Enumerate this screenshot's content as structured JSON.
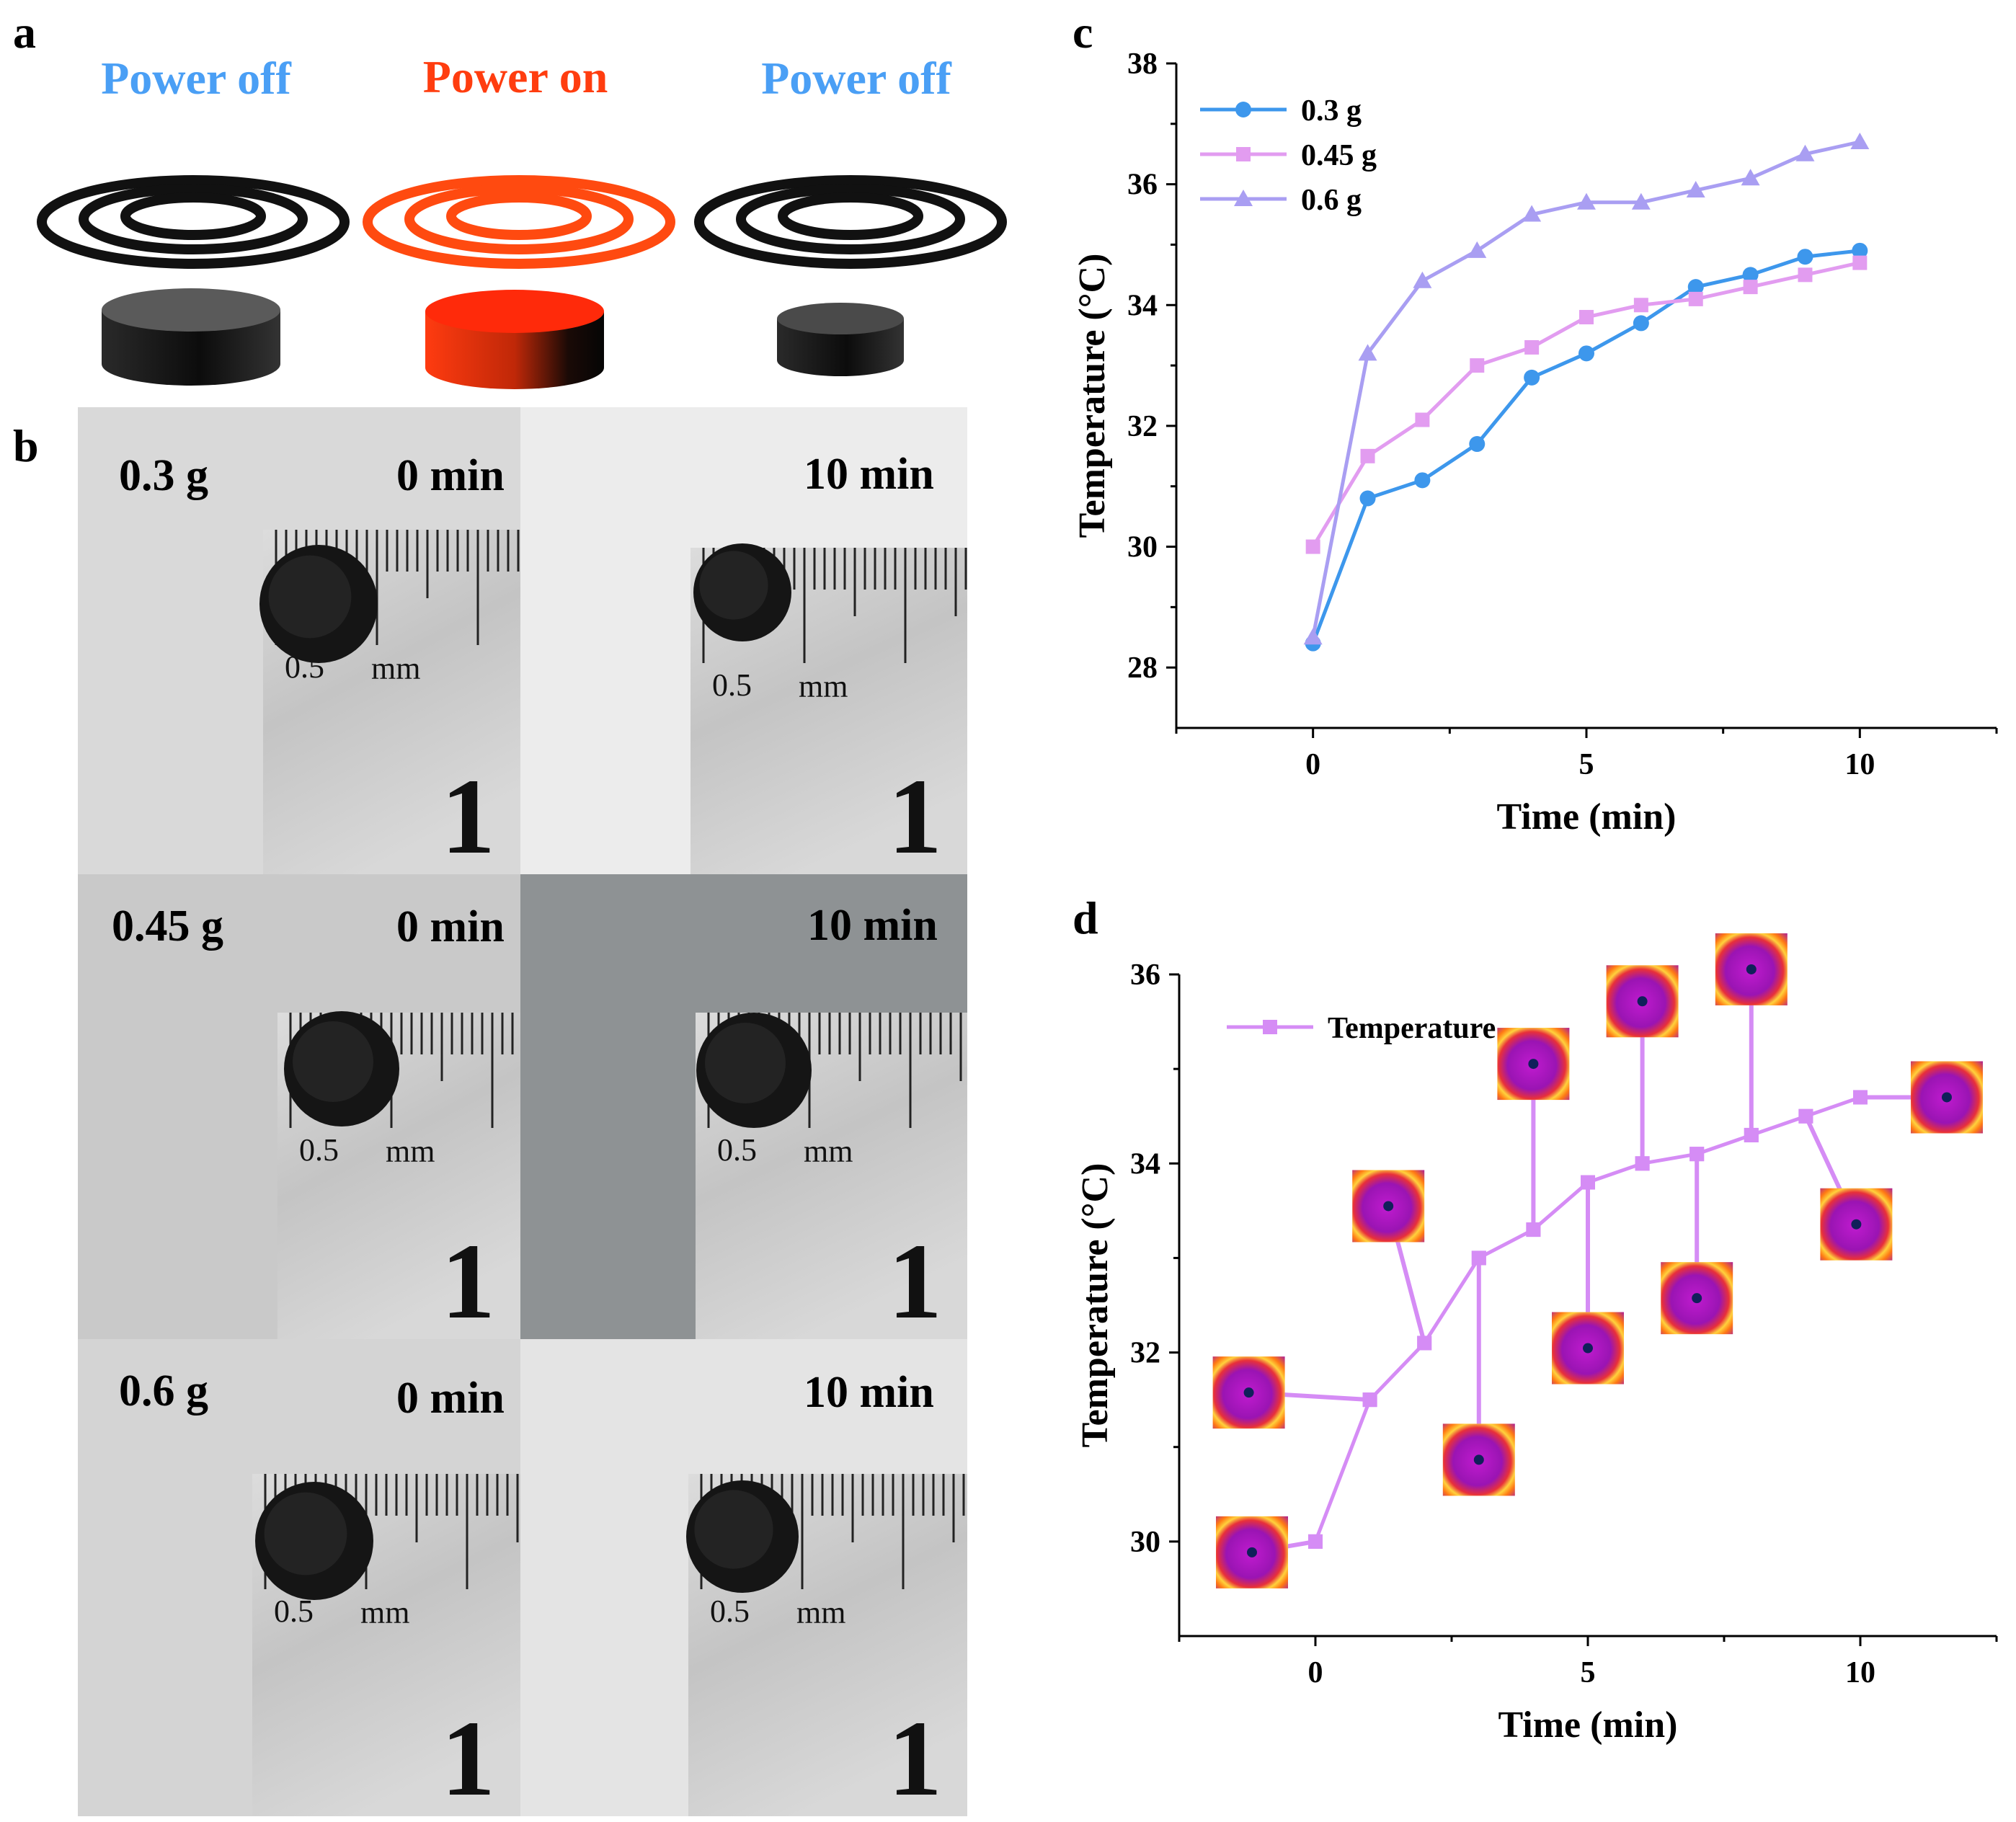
{
  "panels": {
    "a": "a",
    "b": "b",
    "c": "c",
    "d": "d"
  },
  "panel_a": {
    "states": [
      {
        "label": "Power off",
        "color": "#4a9ff5"
      },
      {
        "label": "Power on",
        "color": "#ff3d0f"
      },
      {
        "label": "Power off",
        "color": "#4a9ff5"
      }
    ]
  },
  "panel_b": {
    "rows": [
      {
        "mass": "0.3 g",
        "t0": "0 min",
        "t10": "10 min"
      },
      {
        "mass": "0.45 g",
        "t0": "0 min",
        "t10": "10 min"
      },
      {
        "mass": "0.6 g",
        "t0": "0 min",
        "t10": "10 min"
      }
    ],
    "ruler": {
      "small": "0.5",
      "unit": "mm",
      "big": "1"
    }
  },
  "chart_data": [
    {
      "panel": "c",
      "type": "line",
      "title": "",
      "xlabel": "Time (min)",
      "ylabel": "Temperature (°C)",
      "xlim": [
        -2.5,
        12.5
      ],
      "ylim": [
        27,
        38
      ],
      "xticks": [
        0,
        5,
        10
      ],
      "yticks": [
        28,
        30,
        32,
        34,
        36,
        38
      ],
      "legend_position": "top-left",
      "series": [
        {
          "name": "0.3 g",
          "color": "#3d97ec",
          "marker": "circle",
          "x": [
            0,
            1,
            2,
            3,
            4,
            5,
            6,
            7,
            8,
            9,
            10
          ],
          "y": [
            28.4,
            30.8,
            31.1,
            31.7,
            32.8,
            33.2,
            33.7,
            34.3,
            34.5,
            34.8,
            34.9
          ]
        },
        {
          "name": "0.45 g",
          "color": "#e29cf0",
          "marker": "square",
          "x": [
            0,
            1,
            2,
            3,
            4,
            5,
            6,
            7,
            8,
            9,
            10
          ],
          "y": [
            30.0,
            31.5,
            32.1,
            33.0,
            33.3,
            33.8,
            34.0,
            34.1,
            34.3,
            34.5,
            34.7
          ]
        },
        {
          "name": "0.6 g",
          "color": "#a99ef2",
          "marker": "triangle",
          "x": [
            0,
            1,
            2,
            3,
            4,
            5,
            6,
            7,
            8,
            9,
            10
          ],
          "y": [
            28.5,
            33.2,
            34.4,
            34.9,
            35.5,
            35.7,
            35.7,
            35.9,
            36.1,
            36.5,
            36.7
          ]
        }
      ]
    },
    {
      "panel": "d",
      "type": "line",
      "title": "",
      "xlabel": "Time (min)",
      "ylabel": "Temperature (°C)",
      "xlim": [
        -2.5,
        12.5
      ],
      "ylim": [
        29,
        36
      ],
      "xticks": [
        0,
        5,
        10
      ],
      "yticks": [
        30,
        32,
        34,
        36
      ],
      "legend_position": "top-left",
      "series": [
        {
          "name": "Temperature",
          "color": "#d58cf5",
          "marker": "square",
          "x": [
            0,
            1,
            2,
            3,
            4,
            5,
            6,
            7,
            8,
            9,
            10
          ],
          "y": [
            30.0,
            31.5,
            32.1,
            33.0,
            33.3,
            33.8,
            34.0,
            34.1,
            34.3,
            34.5,
            34.7
          ]
        }
      ],
      "annotations": "thermal image inset for each time point"
    }
  ]
}
